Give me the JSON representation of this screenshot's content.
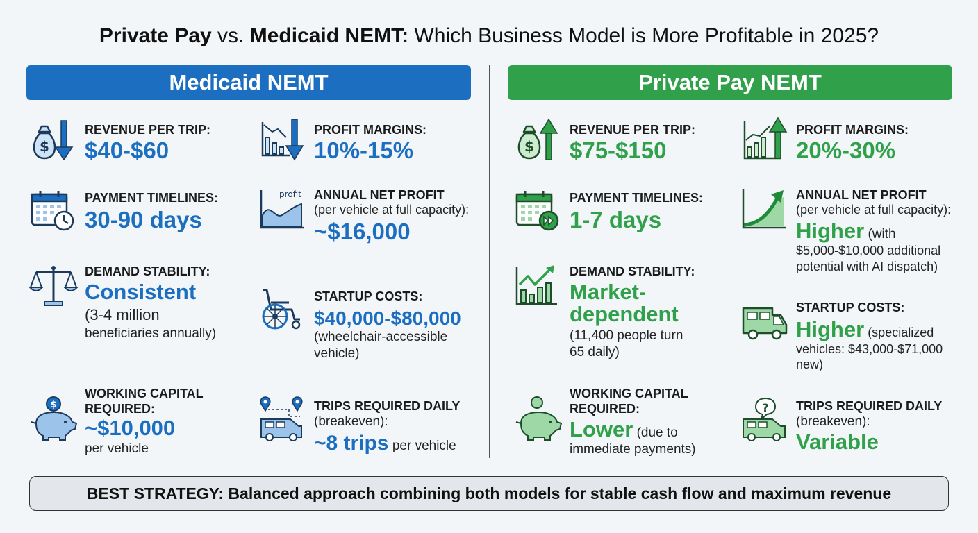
{
  "title": {
    "part1": "Private Pay",
    "part2": " vs. ",
    "part3": "Medicaid NEMT:",
    "part4": " Which Business Model is More Profitable in 2025?"
  },
  "medicaid": {
    "header": "Medicaid NEMT",
    "revenue_label": "REVENUE PER TRIP:",
    "revenue_value": "$40-$60",
    "margins_label": "PROFIT MARGINS:",
    "margins_value": "10%-15%",
    "payment_label": "PAYMENT TIMELINES:",
    "payment_value": "30-90 days",
    "annual_label": "ANNUAL NET PROFIT",
    "annual_note": "(per vehicle at full capacity):",
    "annual_value": "~$16,000",
    "annual_icon_text": "profit",
    "demand_label": "DEMAND STABILITY:",
    "demand_value": "Consistent",
    "demand_note1": "(3-4 million",
    "demand_note2": "beneficiaries annually)",
    "startup_label": "STARTUP COSTS:",
    "startup_value": "$40,000-$80,000",
    "startup_note1": "(wheelchair-accessible",
    "startup_note2": "vehicle)",
    "capital_label1": "WORKING CAPITAL",
    "capital_label2": "REQUIRED:",
    "capital_value": "~$10,000",
    "capital_note": "per vehicle",
    "trips_label": "TRIPS REQUIRED DAILY",
    "trips_note": "(breakeven):",
    "trips_value": "~8 trips",
    "trips_inline": " per vehicle"
  },
  "private": {
    "header": "Private Pay NEMT",
    "revenue_label": "REVENUE PER TRIP:",
    "revenue_value": "$75-$150",
    "margins_label": "PROFIT MARGINS:",
    "margins_value": "20%-30%",
    "payment_label": "PAYMENT TIMELINES:",
    "payment_value": "1-7 days",
    "annual_label": "ANNUAL NET PROFIT",
    "annual_note": "(per vehicle at full capacity):",
    "annual_value": "Higher",
    "annual_inline": " (with",
    "annual_note2": "$5,000-$10,000 additional",
    "annual_note3": "potential with AI dispatch)",
    "demand_label": "DEMAND STABILITY:",
    "demand_value1": "Market-",
    "demand_value2": "dependent",
    "demand_note1": "(11,400 people turn",
    "demand_note2": "65 daily)",
    "startup_label": "STARTUP COSTS:",
    "startup_value": "Higher",
    "startup_inline": " (specialized",
    "startup_note2": "vehicles: $43,000-$71,000",
    "startup_note3": "new)",
    "capital_label1": "WORKING CAPITAL",
    "capital_label2": "REQUIRED:",
    "capital_value": "Lower",
    "capital_inline": " (due to",
    "capital_note2": "immediate payments)",
    "trips_label": "TRIPS REQUIRED DAILY",
    "trips_note": "(breakeven):",
    "trips_value": "Variable"
  },
  "strategy": "BEST STRATEGY: Balanced approach combining both models for stable cash flow and maximum revenue",
  "colors": {
    "blue": "#1c6fc0",
    "green": "#30a14a",
    "light_blue": "#cfe3f6",
    "light_green": "#cdeccf"
  },
  "icons": {
    "medicaid": [
      "money-bag-down-icon",
      "bar-chart-down-icon",
      "calendar-clock-icon",
      "area-chart-icon",
      "balance-scale-icon",
      "wheelchair-icon",
      "piggy-bank-coin-icon",
      "route-van-icon"
    ],
    "private": [
      "money-bag-up-icon",
      "bar-chart-up-icon",
      "calendar-forward-icon",
      "growth-curve-icon",
      "bar-chart-rising-icon",
      "ambulance-van-icon",
      "piggy-bank-icon",
      "van-question-icon"
    ]
  }
}
